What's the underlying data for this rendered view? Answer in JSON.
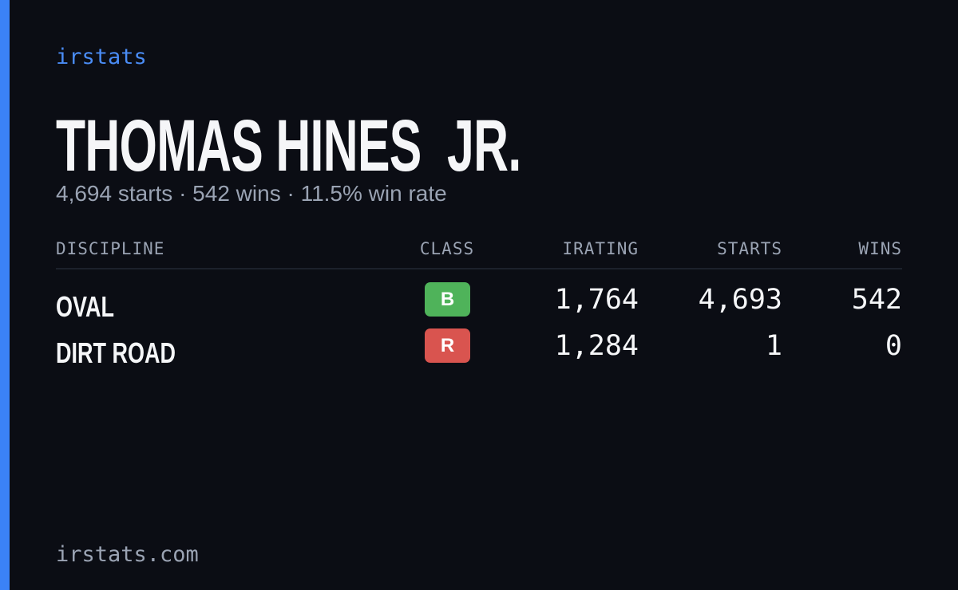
{
  "brand": "irstats",
  "driver": {
    "name": "THOMAS HINES  JR.",
    "summary": "4,694 starts · 542 wins · 11.5% win rate"
  },
  "table": {
    "columns": [
      "DISCIPLINE",
      "CLASS",
      "IRATING",
      "STARTS",
      "WINS"
    ],
    "rows": [
      {
        "discipline": "OVAL",
        "class": "B",
        "color": "#4fb35a",
        "irating": "1,764",
        "starts": "4,693",
        "wins": "542"
      },
      {
        "discipline": "DIRT ROAD",
        "class": "R",
        "color": "#d9544f",
        "irating": "1,284",
        "starts": "1",
        "wins": "0"
      }
    ]
  },
  "footer": "irstats.com"
}
